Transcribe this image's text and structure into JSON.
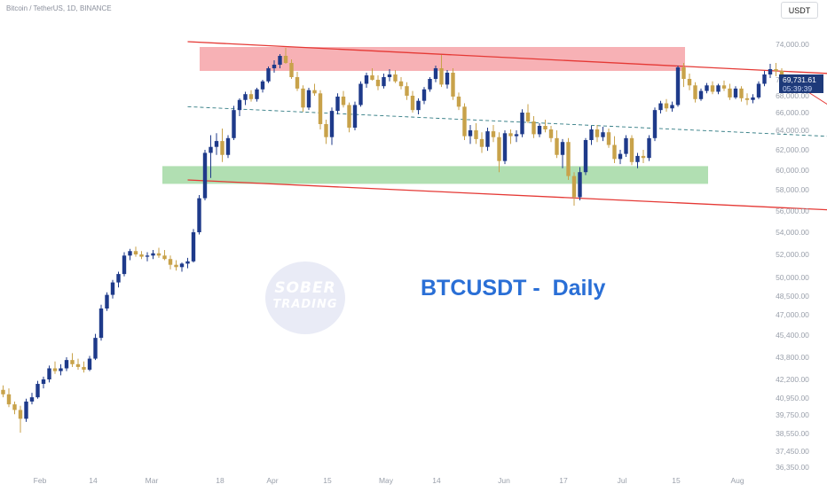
{
  "header": {
    "symbol_info": "Bitcoin / TetherUS, 1D, BINANCE",
    "currency_button": "USDT"
  },
  "price_tag": {
    "price": "69,731.61",
    "countdown": "05:39:39"
  },
  "watermark": {
    "line1": "SOBER",
    "line2": "TRADING"
  },
  "title": "BTCUSDT -  Daily",
  "colors": {
    "bull": "#1e3a8a",
    "bear": "#c8a24a",
    "resistance_zone": "#f6a3a8",
    "support_zone": "#a3d9a5",
    "channel_line": "#e53935",
    "mid_line": "#2f7a82",
    "price_tag_bg": "#1e3a7a",
    "title": "#2a6fd6"
  },
  "chart_data": {
    "type": "candlestick",
    "x_axis": {
      "tick_labels": [
        "Feb",
        "14",
        "Mar",
        "18",
        "Apr",
        "15",
        "May",
        "14",
        "Jun",
        "17",
        "Jul",
        "15",
        "Aug"
      ],
      "range": [
        "2024-01-23",
        "2024-08-01"
      ]
    },
    "y_axis": {
      "tick_labels": [
        "74,000.00",
        "70,000.00",
        "68,000.00",
        "66,000.00",
        "64,000.00",
        "62,000.00",
        "60,000.00",
        "58,000.00",
        "56,000.00",
        "54,000.00",
        "52,000.00",
        "50,000.00",
        "48,500.00",
        "47,000.00",
        "45,400.00",
        "43,800.00",
        "42,200.00",
        "40,950.00",
        "39,750.00",
        "38,550.00",
        "37,450.00",
        "36,350.00"
      ],
      "position": "right"
    },
    "series": [
      {
        "name": "",
        "ohlc": [
          [
            41500,
            41800,
            41000,
            41200
          ],
          [
            41200,
            41600,
            40300,
            40500
          ],
          [
            40500,
            40700,
            39800,
            40100
          ],
          [
            40100,
            40400,
            38600,
            39500
          ],
          [
            39500,
            40900,
            39300,
            40700
          ],
          [
            40700,
            41300,
            40500,
            41000
          ],
          [
            41000,
            42100,
            40900,
            41900
          ],
          [
            41900,
            42400,
            41600,
            42200
          ],
          [
            42200,
            43200,
            42000,
            43000
          ],
          [
            43000,
            43500,
            42600,
            42800
          ],
          [
            42800,
            43300,
            42500,
            43000
          ],
          [
            43000,
            43800,
            42800,
            43600
          ],
          [
            43600,
            44100,
            43100,
            43300
          ],
          [
            43300,
            43700,
            42900,
            43100
          ],
          [
            43100,
            43500,
            42700,
            42900
          ],
          [
            42900,
            43900,
            42800,
            43700
          ],
          [
            43700,
            45500,
            43600,
            45200
          ],
          [
            45200,
            47800,
            45000,
            47500
          ],
          [
            47500,
            48800,
            47300,
            48600
          ],
          [
            48600,
            49800,
            48300,
            49600
          ],
          [
            49600,
            50500,
            49200,
            50300
          ],
          [
            50300,
            52200,
            50100,
            51900
          ],
          [
            51900,
            52500,
            51500,
            52300
          ],
          [
            52300,
            52700,
            51800,
            52000
          ],
          [
            52000,
            52300,
            51600,
            51800
          ],
          [
            51800,
            52200,
            51400,
            51900
          ],
          [
            51900,
            52400,
            51600,
            52100
          ],
          [
            52100,
            52600,
            51700,
            51900
          ],
          [
            51900,
            52400,
            51500,
            51600
          ],
          [
            51600,
            51900,
            50700,
            51100
          ],
          [
            51100,
            51500,
            50600,
            50900
          ],
          [
            50900,
            51300,
            50500,
            51200
          ],
          [
            51200,
            51700,
            50800,
            51400
          ],
          [
            51400,
            54300,
            51300,
            54000
          ],
          [
            54000,
            57500,
            53800,
            57200
          ],
          [
            57200,
            62000,
            57000,
            61700
          ],
          [
            61700,
            63500,
            59200,
            62300
          ],
          [
            62300,
            63700,
            61500,
            62900
          ],
          [
            62900,
            64200,
            60800,
            61500
          ],
          [
            61500,
            63500,
            61200,
            63200
          ],
          [
            63200,
            66800,
            63000,
            66300
          ],
          [
            66300,
            67700,
            65600,
            67500
          ],
          [
            67500,
            68500,
            66900,
            68200
          ],
          [
            68200,
            68700,
            67300,
            67600
          ],
          [
            67600,
            69000,
            67300,
            68800
          ],
          [
            68800,
            70000,
            68400,
            69800
          ],
          [
            69800,
            71500,
            69600,
            71300
          ],
          [
            71300,
            72200,
            70800,
            71700
          ],
          [
            71700,
            72900,
            71300,
            72700
          ],
          [
            72700,
            73600,
            71800,
            71900
          ],
          [
            71900,
            72300,
            70100,
            70300
          ],
          [
            70300,
            70900,
            68600,
            68900
          ],
          [
            68900,
            69300,
            66100,
            66600
          ],
          [
            66600,
            69000,
            66300,
            68700
          ],
          [
            68700,
            69500,
            68000,
            68300
          ],
          [
            68300,
            68700,
            64100,
            64700
          ],
          [
            64700,
            65200,
            62600,
            63300
          ],
          [
            63300,
            66600,
            62500,
            66200
          ],
          [
            66200,
            68300,
            65800,
            67900
          ],
          [
            67900,
            68600,
            66600,
            66900
          ],
          [
            66900,
            67200,
            63800,
            64300
          ],
          [
            64300,
            67300,
            64000,
            66900
          ],
          [
            66900,
            69800,
            66700,
            69500
          ],
          [
            69500,
            70800,
            69000,
            70500
          ],
          [
            70500,
            71300,
            69900,
            70000
          ],
          [
            70000,
            70500,
            68700,
            69200
          ],
          [
            69200,
            70700,
            68900,
            70300
          ],
          [
            70300,
            71200,
            69800,
            70600
          ],
          [
            70600,
            71100,
            69600,
            69800
          ],
          [
            69800,
            70300,
            68800,
            69200
          ],
          [
            69200,
            69700,
            67500,
            68000
          ],
          [
            68000,
            68600,
            66000,
            66300
          ],
          [
            66300,
            67700,
            65800,
            67400
          ],
          [
            67400,
            69100,
            67000,
            68800
          ],
          [
            68800,
            70300,
            68500,
            70100
          ],
          [
            70100,
            71600,
            69700,
            71300
          ],
          [
            71300,
            72800,
            69100,
            69400
          ],
          [
            69400,
            71100,
            68900,
            70800
          ],
          [
            70800,
            71300,
            67500,
            67900
          ],
          [
            67900,
            68400,
            66300,
            66700
          ],
          [
            66700,
            67100,
            63000,
            63400
          ],
          [
            63400,
            64600,
            62600,
            64000
          ],
          [
            64000,
            64800,
            62600,
            63100
          ],
          [
            63100,
            63800,
            61700,
            62300
          ],
          [
            62300,
            64300,
            61900,
            63900
          ],
          [
            63900,
            64600,
            62800,
            63300
          ],
          [
            63300,
            63800,
            59800,
            60900
          ],
          [
            60900,
            64000,
            60600,
            63700
          ],
          [
            63700,
            64100,
            62600,
            63400
          ],
          [
            63400,
            64000,
            62800,
            63600
          ],
          [
            63600,
            66400,
            63300,
            66000
          ],
          [
            66000,
            67000,
            64800,
            65000
          ],
          [
            65000,
            65600,
            63200,
            63600
          ],
          [
            63600,
            64800,
            63300,
            64500
          ],
          [
            64500,
            65200,
            63800,
            64100
          ],
          [
            64100,
            64500,
            62800,
            63200
          ],
          [
            63200,
            64000,
            61200,
            61500
          ],
          [
            61500,
            63100,
            60200,
            62800
          ],
          [
            62800,
            63200,
            59000,
            59400
          ],
          [
            59400,
            59800,
            56500,
            57300
          ],
          [
            57300,
            60300,
            57000,
            59800
          ],
          [
            59800,
            63200,
            59500,
            63000
          ],
          [
            63000,
            64500,
            62500,
            64100
          ],
          [
            64100,
            64600,
            62800,
            63300
          ],
          [
            63300,
            64400,
            62900,
            63800
          ],
          [
            63800,
            64200,
            62200,
            62500
          ],
          [
            62500,
            63400,
            60700,
            61100
          ],
          [
            61100,
            62000,
            60600,
            61600
          ],
          [
            61600,
            63500,
            61300,
            63200
          ],
          [
            63200,
            63500,
            60500,
            60800
          ],
          [
            60800,
            61700,
            60200,
            61400
          ],
          [
            61400,
            62000,
            60700,
            61200
          ],
          [
            61200,
            63500,
            60900,
            63200
          ],
          [
            63200,
            66600,
            62900,
            66300
          ],
          [
            66300,
            67400,
            65900,
            67100
          ],
          [
            67100,
            67600,
            66100,
            66500
          ],
          [
            66500,
            67300,
            66100,
            66900
          ],
          [
            66900,
            71600,
            66700,
            71400
          ],
          [
            71400,
            71900,
            69100,
            70100
          ],
          [
            70100,
            70700,
            68700,
            69300
          ],
          [
            69300,
            69700,
            67200,
            67600
          ],
          [
            67600,
            68900,
            67400,
            68600
          ],
          [
            68600,
            69600,
            68300,
            69300
          ],
          [
            69300,
            69800,
            68200,
            68500
          ],
          [
            68500,
            69500,
            68200,
            69300
          ],
          [
            69300,
            69900,
            68600,
            68900
          ],
          [
            68900,
            69500,
            67500,
            67800
          ],
          [
            67800,
            69200,
            67600,
            68900
          ],
          [
            68900,
            69200,
            67300,
            67700
          ],
          [
            67700,
            68300,
            66900,
            67500
          ],
          [
            67500,
            68200,
            67100,
            67800
          ],
          [
            67800,
            69800,
            67600,
            69500
          ],
          [
            69500,
            71000,
            69200,
            70600
          ],
          [
            70600,
            71800,
            70200,
            71200
          ],
          [
            71200,
            71900,
            70400,
            71000
          ],
          [
            71000,
            71300,
            68700,
            69400
          ],
          [
            69400,
            69900,
            69100,
            69730
          ]
        ]
      }
    ],
    "annotations": [
      {
        "type": "resistance_zone",
        "y_range": [
          71000,
          73700
        ]
      },
      {
        "type": "support_zone",
        "y_range": [
          58600,
          60400
        ]
      },
      {
        "type": "descending_channel",
        "lines": [
          {
            "from": [
              "2024-02-24",
              74300
            ],
            "to": [
              "2024-07-20",
              69500
            ]
          },
          {
            "from": [
              "2024-02-24",
              59000
            ],
            "to": [
              "2024-07-20",
              55200
            ]
          }
        ]
      },
      {
        "type": "channel_midline",
        "from": [
          "2024-02-24",
          66700
        ],
        "to": [
          "2024-07-20",
          62400
        ]
      },
      {
        "type": "arrow",
        "from": [
          "2024-06-07",
          70100
        ],
        "to": [
          "2024-06-15",
          66500
        ]
      }
    ]
  }
}
